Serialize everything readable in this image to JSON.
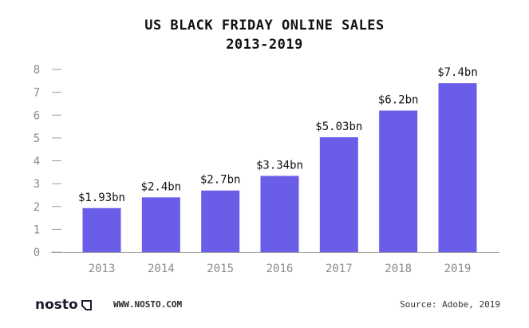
{
  "chart_data": {
    "type": "bar",
    "title_line1": "US BLACK FRIDAY ONLINE SALES",
    "title_line2": "2013-2019",
    "categories": [
      "2013",
      "2014",
      "2015",
      "2016",
      "2017",
      "2018",
      "2019"
    ],
    "values": [
      1.93,
      2.4,
      2.7,
      3.34,
      5.03,
      6.2,
      7.4
    ],
    "data_labels": [
      "$1.93bn",
      "$2.4bn",
      "$2.7bn",
      "$3.34bn",
      "$5.03bn",
      "$6.2bn",
      "$7.4bn"
    ],
    "ylim": [
      0,
      8
    ],
    "yticks": [
      "0",
      "1",
      "2",
      "3",
      "4",
      "5",
      "6",
      "7",
      "8"
    ],
    "grid": false,
    "bar_color": "#6a5de8"
  },
  "footer": {
    "logo": "nosto",
    "url": "WWW.NOSTO.COM",
    "source": "Source: Adobe, 2019"
  }
}
